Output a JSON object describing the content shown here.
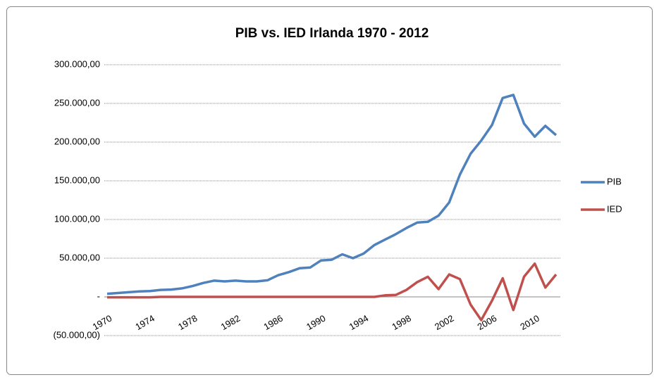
{
  "chart_data": {
    "type": "line",
    "title": "PIB vs. IED Irlanda 1970 - 2012",
    "categories": [
      "1970",
      null,
      null,
      null,
      "1974",
      null,
      null,
      null,
      "1978",
      null,
      null,
      null,
      "1982",
      null,
      null,
      null,
      "1986",
      null,
      null,
      null,
      "1990",
      null,
      null,
      null,
      "1994",
      null,
      null,
      null,
      "1998",
      null,
      null,
      null,
      "2002",
      null,
      null,
      null,
      "2006",
      null,
      null,
      null,
      "2010",
      null,
      null
    ],
    "series": [
      {
        "name": "PIB",
        "color": "#4f81bd",
        "values": [
          4000,
          5000,
          6000,
          7000,
          7500,
          9000,
          9500,
          11000,
          14000,
          18000,
          21000,
          20000,
          21000,
          20000,
          20000,
          21500,
          28000,
          32000,
          37000,
          38000,
          47000,
          48000,
          55000,
          50000,
          56000,
          67000,
          74000,
          81000,
          89000,
          96000,
          97000,
          105000,
          122000,
          158000,
          185000,
          202000,
          222000,
          257000,
          261000,
          224000,
          207000,
          221000,
          209000
        ]
      },
      {
        "name": "IED",
        "color": "#c0504d",
        "values": [
          -500,
          -500,
          -500,
          -500,
          -500,
          0,
          0,
          0,
          0,
          0,
          0,
          0,
          0,
          0,
          0,
          0,
          0,
          0,
          0,
          0,
          0,
          0,
          0,
          0,
          0,
          0,
          2000,
          2500,
          9000,
          19000,
          26000,
          10000,
          29000,
          23000,
          -10000,
          -30000,
          -5000,
          24000,
          -17000,
          26000,
          43000,
          12000,
          29000
        ]
      }
    ],
    "ylim": [
      -50000,
      300000
    ],
    "yticks": [
      {
        "value": -50000,
        "label": "(50.000,00)"
      },
      {
        "value": 0,
        "label": "-"
      },
      {
        "value": 50000,
        "label": "50.000,00"
      },
      {
        "value": 100000,
        "label": "100.000,00"
      },
      {
        "value": 150000,
        "label": "150.000,00"
      },
      {
        "value": 200000,
        "label": "200.000,00"
      },
      {
        "value": 250000,
        "label": "250.000,00"
      },
      {
        "value": 300000,
        "label": "300.000,00"
      }
    ],
    "grid": true,
    "legend": "right"
  }
}
